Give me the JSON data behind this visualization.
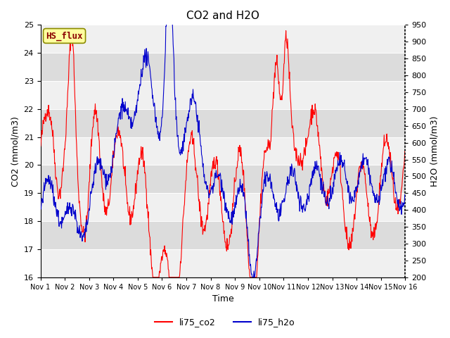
{
  "title": "CO2 and H2O",
  "xlabel": "Time",
  "ylabel_left": "CO2 (mmol/m3)",
  "ylabel_right": "H2O (mmol/m3)",
  "ylim_left": [
    16.0,
    25.0
  ],
  "ylim_right": [
    200,
    950
  ],
  "yticks_left": [
    16.0,
    17.0,
    18.0,
    19.0,
    20.0,
    21.0,
    22.0,
    23.0,
    24.0,
    25.0
  ],
  "yticks_right": [
    200,
    250,
    300,
    350,
    400,
    450,
    500,
    550,
    600,
    650,
    700,
    750,
    800,
    850,
    900,
    950
  ],
  "annotation_text": "HS_flux",
  "annotation_color": "#8B0000",
  "annotation_bg": "#FFFFA0",
  "annotation_border": "#8B8B00",
  "co2_color": "#FF0000",
  "h2o_color": "#0000CC",
  "legend_co2": "li75_co2",
  "legend_h2o": "li75_h2o",
  "band_color_dark": "#DCDCDC",
  "band_color_light": "#F0F0F0",
  "grid_color": "#FFFFFF",
  "fig_bg": "#FFFFFF",
  "title_fontsize": 11,
  "axis_label_fontsize": 9,
  "tick_fontsize": 8,
  "xtick_fontsize": 7,
  "linewidth": 0.8
}
